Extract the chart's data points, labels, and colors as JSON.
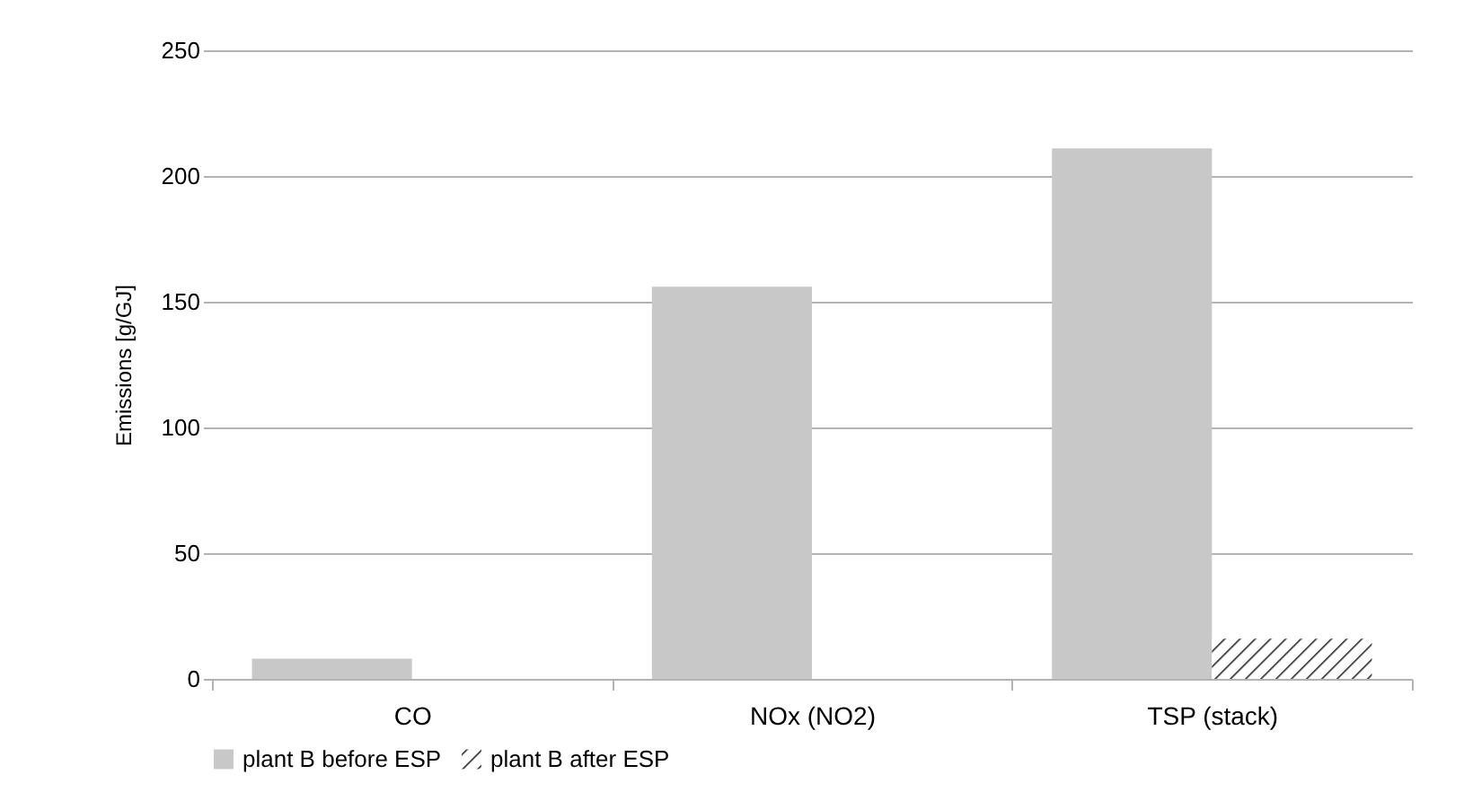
{
  "chart_data": {
    "type": "bar",
    "ylabel": "Emissions [g/GJ]",
    "categories": [
      "CO",
      "NOx (NO2)",
      "TSP (stack)"
    ],
    "series": [
      {
        "name": "plant B before ESP",
        "color": "#c8c8c8",
        "values": [
          8,
          156,
          211
        ]
      },
      {
        "name": "plant B after ESP",
        "color": "#222222",
        "values": [
          null,
          null,
          16
        ]
      }
    ],
    "ylim": [
      0,
      250
    ],
    "yticks": [
      0,
      50,
      100,
      150,
      200,
      250
    ],
    "grid": "y",
    "legend": "bottom"
  }
}
